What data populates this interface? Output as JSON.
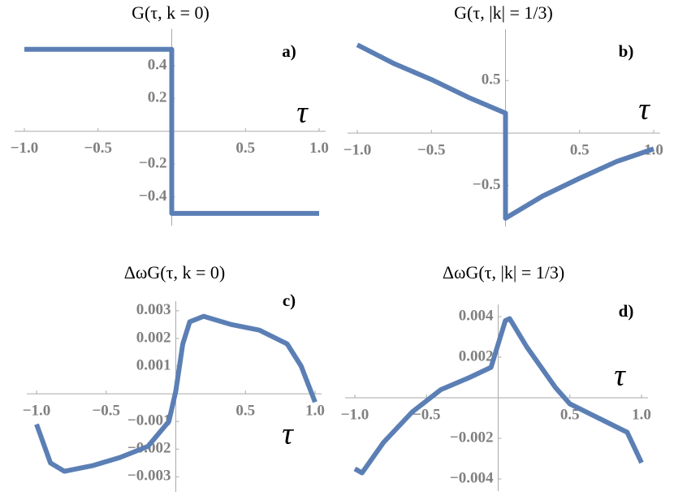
{
  "chart_data": [
    {
      "type": "line",
      "title": "G(τ, k = 0)",
      "panel_label": "a)",
      "xlabel": "τ",
      "xlim": [
        -1,
        1
      ],
      "ylim": [
        -0.55,
        0.6
      ],
      "xticks": [
        {
          "value": -1,
          "label": "−1.0"
        },
        {
          "value": -0.5,
          "label": "−0.5"
        },
        0.5,
        {
          "value": 1,
          "label": "1.0"
        }
      ],
      "yticks": [
        0.4,
        0.2,
        {
          "value": -0.2,
          "label": "−0.2"
        },
        {
          "value": -0.4,
          "label": "−0.4"
        }
      ],
      "color": "#5b7fb5",
      "x": [
        -1,
        0,
        0,
        1
      ],
      "values": [
        0.5,
        0.5,
        -0.5,
        -0.5
      ]
    },
    {
      "type": "line",
      "title": "G(τ, |k| = 1/3)",
      "panel_label": "b)",
      "xlabel": "τ",
      "xlim": [
        -1,
        1
      ],
      "ylim": [
        -0.85,
        0.95
      ],
      "xticks": [
        {
          "value": -1,
          "label": "−1.0"
        },
        {
          "value": -0.5,
          "label": "−0.5"
        },
        0.5,
        {
          "value": 1,
          "label": "1.0"
        }
      ],
      "yticks": [
        0.5,
        {
          "value": -0.5,
          "label": "−0.5"
        }
      ],
      "color": "#5b7fb5",
      "x": [
        -1,
        -0.75,
        -0.5,
        -0.25,
        0,
        0,
        0.25,
        0.5,
        0.75,
        1
      ],
      "values": [
        0.84,
        0.66,
        0.51,
        0.34,
        0.19,
        -0.81,
        -0.6,
        -0.43,
        -0.27,
        -0.15
      ]
    },
    {
      "type": "line",
      "title": "ΔωG(τ, k = 0)",
      "panel_label": "c)",
      "xlabel": "τ",
      "xlim": [
        -1,
        1
      ],
      "ylim": [
        -0.0034,
        0.0032
      ],
      "xticks": [
        {
          "value": -1,
          "label": "−1.0"
        },
        {
          "value": -0.5,
          "label": "−0.5"
        },
        0.5,
        {
          "value": 1,
          "label": "1.0"
        }
      ],
      "yticks": [
        0.003,
        0.002,
        0.001,
        {
          "value": -0.001,
          "label": "−0.001"
        },
        {
          "value": -0.002,
          "label": "−0.002"
        },
        {
          "value": -0.003,
          "label": "−0.003"
        }
      ],
      "color": "#5b7fb5",
      "x": [
        -1,
        -0.9,
        -0.8,
        -0.6,
        -0.4,
        -0.2,
        -0.05,
        0,
        0.05,
        0.1,
        0.2,
        0.4,
        0.6,
        0.8,
        0.9,
        1
      ],
      "values": [
        -0.0011,
        -0.0025,
        -0.0028,
        -0.0026,
        -0.0023,
        -0.0019,
        -0.001,
        0.0001,
        0.0018,
        0.0026,
        0.0028,
        0.0025,
        0.0023,
        0.0018,
        0.001,
        -0.0003
      ]
    },
    {
      "type": "line",
      "title": "ΔωG(τ, |k| = 1/3)",
      "panel_label": "d)",
      "xlabel": "τ",
      "xlim": [
        -1,
        1
      ],
      "ylim": [
        -0.0044,
        0.0044
      ],
      "xticks": [
        {
          "value": -1,
          "label": "−1.0"
        },
        {
          "value": -0.5,
          "label": "−0.5"
        },
        0.5,
        {
          "value": 1,
          "label": "1.0"
        }
      ],
      "yticks": [
        0.004,
        0.002,
        {
          "value": -0.002,
          "label": "−0.002"
        },
        {
          "value": -0.004,
          "label": "−0.004"
        }
      ],
      "color": "#5b7fb5",
      "x": [
        -1,
        -0.95,
        -0.8,
        -0.6,
        -0.4,
        -0.2,
        -0.05,
        0.05,
        0.08,
        0.2,
        0.4,
        0.5,
        0.7,
        0.9,
        1
      ],
      "values": [
        -0.0035,
        -0.0037,
        -0.0022,
        -0.0007,
        0.0004,
        0.001,
        0.0015,
        0.0038,
        0.0039,
        0.0025,
        0.0005,
        -0.0003,
        -0.001,
        -0.0017,
        -0.0032
      ]
    }
  ]
}
